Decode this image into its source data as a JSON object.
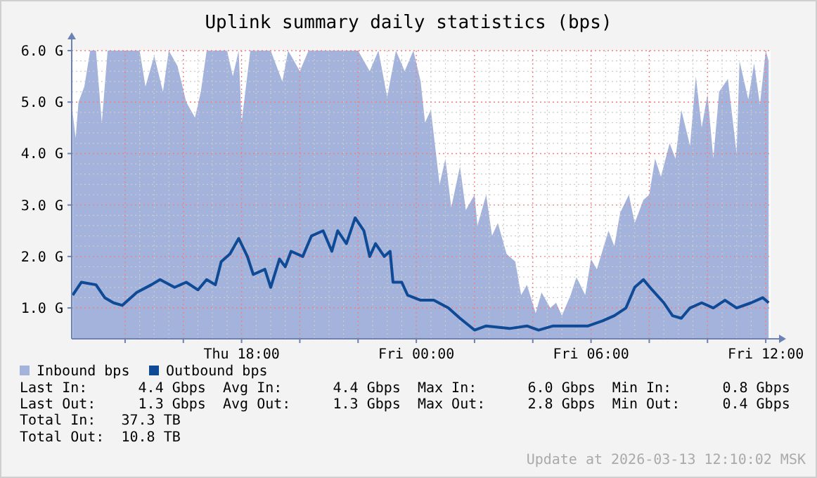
{
  "chart_data": {
    "type": "area",
    "title": "Uplink summary daily statistics (bps)",
    "xlim": [
      "2026-03-12T12:10",
      "2026-03-13T12:10"
    ],
    "xticks": [
      {
        "value": "2026-03-12T14:00",
        "label": null
      },
      {
        "value": "2026-03-12T16:00",
        "label": null
      },
      {
        "value": "2026-03-12T18:00",
        "label": "Thu 18:00"
      },
      {
        "value": "2026-03-12T20:00",
        "label": null
      },
      {
        "value": "2026-03-12T22:00",
        "label": null
      },
      {
        "value": "2026-03-13T00:00",
        "label": "Fri 00:00"
      },
      {
        "value": "2026-03-13T02:00",
        "label": null
      },
      {
        "value": "2026-03-13T04:00",
        "label": null
      },
      {
        "value": "2026-03-13T06:00",
        "label": "Fri 06:00"
      },
      {
        "value": "2026-03-13T08:00",
        "label": null
      },
      {
        "value": "2026-03-13T10:00",
        "label": null
      },
      {
        "value": "2026-03-13T12:00",
        "label": "Fri 12:00"
      }
    ],
    "ylim": [
      0.4,
      6.0
    ],
    "yticks": [
      {
        "value": 1,
        "label": "1.0 G"
      },
      {
        "value": 2,
        "label": "2.0 G"
      },
      {
        "value": 3,
        "label": "3.0 G"
      },
      {
        "value": 4,
        "label": "4.0 G"
      },
      {
        "value": 5,
        "label": "5.0 G"
      },
      {
        "value": 6,
        "label": "6.0 G"
      }
    ],
    "grid": true,
    "legend": "bottom",
    "series": [
      {
        "name": "Inbound bps",
        "color": "#a4b3db",
        "x": [
          "2026-03-12T12:12",
          "2026-03-12T12:18",
          "2026-03-12T12:24",
          "2026-03-12T12:36",
          "2026-03-12T12:48",
          "2026-03-12T13:00",
          "2026-03-12T13:12",
          "2026-03-12T13:24",
          "2026-03-12T14:00",
          "2026-03-12T14:30",
          "2026-03-12T14:42",
          "2026-03-12T15:00",
          "2026-03-12T15:18",
          "2026-03-12T15:30",
          "2026-03-12T15:48",
          "2026-03-12T16:06",
          "2026-03-12T16:24",
          "2026-03-12T16:36",
          "2026-03-12T16:48",
          "2026-03-12T17:30",
          "2026-03-12T17:42",
          "2026-03-12T17:54",
          "2026-03-12T18:00",
          "2026-03-12T18:18",
          "2026-03-12T19:00",
          "2026-03-12T19:24",
          "2026-03-12T19:36",
          "2026-03-12T20:00",
          "2026-03-12T20:18",
          "2026-03-12T21:30",
          "2026-03-12T22:00",
          "2026-03-12T22:24",
          "2026-03-12T22:42",
          "2026-03-12T23:00",
          "2026-03-12T23:18",
          "2026-03-12T23:36",
          "2026-03-12T23:54",
          "2026-03-13T00:09",
          "2026-03-13T00:18",
          "2026-03-13T00:30",
          "2026-03-13T00:48",
          "2026-03-13T01:00",
          "2026-03-13T01:12",
          "2026-03-13T01:30",
          "2026-03-13T01:42",
          "2026-03-13T02:00",
          "2026-03-13T02:06",
          "2026-03-13T02:24",
          "2026-03-13T02:36",
          "2026-03-13T02:48",
          "2026-03-13T03:06",
          "2026-03-13T03:24",
          "2026-03-13T03:36",
          "2026-03-13T03:48",
          "2026-03-13T04:06",
          "2026-03-13T04:18",
          "2026-03-13T04:36",
          "2026-03-13T04:48",
          "2026-03-13T05:00",
          "2026-03-13T05:18",
          "2026-03-13T05:30",
          "2026-03-13T05:48",
          "2026-03-13T06:00",
          "2026-03-13T06:12",
          "2026-03-13T06:36",
          "2026-03-13T06:48",
          "2026-03-13T07:00",
          "2026-03-13T07:18",
          "2026-03-13T07:30",
          "2026-03-13T07:48",
          "2026-03-13T08:00",
          "2026-03-13T08:12",
          "2026-03-13T08:24",
          "2026-03-13T08:42",
          "2026-03-13T08:54",
          "2026-03-13T09:06",
          "2026-03-13T09:24",
          "2026-03-13T09:36",
          "2026-03-13T09:48",
          "2026-03-13T10:00",
          "2026-03-13T10:12",
          "2026-03-13T10:24",
          "2026-03-13T10:42",
          "2026-03-13T11:00",
          "2026-03-13T11:06",
          "2026-03-13T11:24",
          "2026-03-13T11:36",
          "2026-03-13T11:48",
          "2026-03-13T12:00",
          "2026-03-13T12:06"
        ],
        "values": [
          4.8,
          4.3,
          5.0,
          5.3,
          6.0,
          6.0,
          4.6,
          6.0,
          6.0,
          6.0,
          5.3,
          5.9,
          5.2,
          6.0,
          5.7,
          5.0,
          4.7,
          5.2,
          6.0,
          6.0,
          5.5,
          6.0,
          4.6,
          6.0,
          6.0,
          5.4,
          6.0,
          5.6,
          6.0,
          6.0,
          6.0,
          5.6,
          6.0,
          5.1,
          6.0,
          5.6,
          6.0,
          5.4,
          4.6,
          4.85,
          3.4,
          3.9,
          2.95,
          3.75,
          2.9,
          3.2,
          2.6,
          3.2,
          2.4,
          2.65,
          2.05,
          1.9,
          1.25,
          1.45,
          0.9,
          1.3,
          1.0,
          1.1,
          0.85,
          1.25,
          1.6,
          1.25,
          1.95,
          1.75,
          2.5,
          2.2,
          2.85,
          3.2,
          2.65,
          3.1,
          3.2,
          3.9,
          3.55,
          4.2,
          3.9,
          4.85,
          4.15,
          5.5,
          4.5,
          5.15,
          3.9,
          5.2,
          5.45,
          4.0,
          5.8,
          5.05,
          5.75,
          4.95,
          6.0,
          5.8
        ]
      },
      {
        "name": "Outbound bps",
        "type": "line",
        "color": "#0e4a95",
        "x": [
          "2026-03-12T12:12",
          "2026-03-12T12:30",
          "2026-03-12T13:00",
          "2026-03-12T13:18",
          "2026-03-12T13:36",
          "2026-03-12T13:54",
          "2026-03-12T14:24",
          "2026-03-12T14:54",
          "2026-03-12T15:12",
          "2026-03-12T15:42",
          "2026-03-12T16:06",
          "2026-03-12T16:30",
          "2026-03-12T16:48",
          "2026-03-12T17:06",
          "2026-03-12T17:18",
          "2026-03-12T17:36",
          "2026-03-12T17:54",
          "2026-03-12T18:12",
          "2026-03-12T18:24",
          "2026-03-12T18:48",
          "2026-03-12T19:00",
          "2026-03-12T19:18",
          "2026-03-12T19:30",
          "2026-03-12T19:42",
          "2026-03-12T20:06",
          "2026-03-12T20:24",
          "2026-03-12T20:48",
          "2026-03-12T21:06",
          "2026-03-12T21:18",
          "2026-03-12T21:36",
          "2026-03-12T21:54",
          "2026-03-12T22:12",
          "2026-03-12T22:24",
          "2026-03-12T22:36",
          "2026-03-12T22:54",
          "2026-03-12T23:06",
          "2026-03-12T23:12",
          "2026-03-12T23:30",
          "2026-03-12T23:42",
          "2026-03-13T00:09",
          "2026-03-13T00:36",
          "2026-03-13T01:06",
          "2026-03-13T01:30",
          "2026-03-13T02:00",
          "2026-03-13T02:24",
          "2026-03-13T03:12",
          "2026-03-13T03:48",
          "2026-03-13T04:12",
          "2026-03-13T04:42",
          "2026-03-13T05:18",
          "2026-03-13T05:54",
          "2026-03-13T06:24",
          "2026-03-13T06:48",
          "2026-03-13T07:12",
          "2026-03-13T07:30",
          "2026-03-13T07:48",
          "2026-03-13T08:06",
          "2026-03-13T08:30",
          "2026-03-13T08:48",
          "2026-03-13T09:06",
          "2026-03-13T09:24",
          "2026-03-13T09:48",
          "2026-03-13T10:12",
          "2026-03-13T10:36",
          "2026-03-13T11:00",
          "2026-03-13T11:30",
          "2026-03-13T11:54",
          "2026-03-13T12:06"
        ],
        "values": [
          1.25,
          1.5,
          1.45,
          1.2,
          1.1,
          1.05,
          1.3,
          1.45,
          1.55,
          1.4,
          1.5,
          1.35,
          1.55,
          1.45,
          1.9,
          2.05,
          2.35,
          2.0,
          1.65,
          1.75,
          1.4,
          1.95,
          1.8,
          2.1,
          2.0,
          2.4,
          2.5,
          2.1,
          2.5,
          2.25,
          2.75,
          2.5,
          2.0,
          2.25,
          2.0,
          2.1,
          1.5,
          1.5,
          1.25,
          1.15,
          1.15,
          1.0,
          0.8,
          0.57,
          0.65,
          0.6,
          0.65,
          0.57,
          0.65,
          0.65,
          0.65,
          0.75,
          0.85,
          1.0,
          1.4,
          1.55,
          1.35,
          1.1,
          0.85,
          0.8,
          1.0,
          1.1,
          1.0,
          1.15,
          1.0,
          1.1,
          1.2,
          1.1
        ]
      }
    ],
    "annotations": [
      "Last In:      4.4 Gbps  Avg In:      4.4 Gbps  Max In:      6.0 Gbps  Min In:      0.8 Gbps",
      "Last Out:     1.3 Gbps  Avg Out:     1.3 Gbps  Max Out:     2.8 Gbps  Min Out:     0.4 Gbps",
      "Total In:   37.3 TB",
      "Total Out:  10.8 TB",
      "Update at 2026-03-13 12:10:02 MSK"
    ]
  }
}
